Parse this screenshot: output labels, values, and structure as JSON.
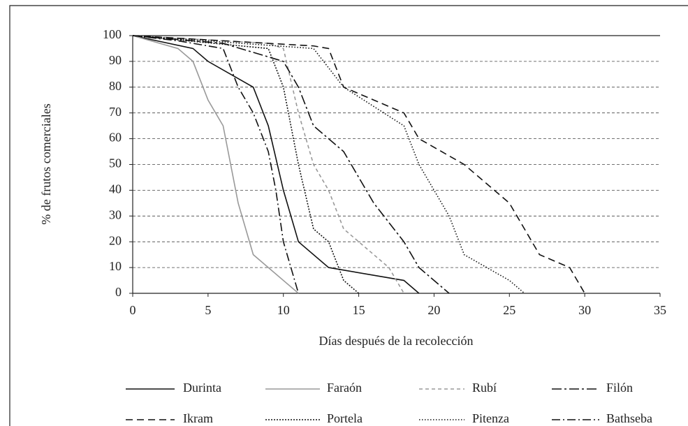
{
  "chart_data": {
    "type": "line",
    "x_label": "Días después de la recolección",
    "y_label": "% de frutos comerciales",
    "xlim": [
      0,
      35
    ],
    "xticks": [
      0,
      5,
      10,
      15,
      20,
      25,
      30,
      35
    ],
    "ylim": [
      0,
      100
    ],
    "yticks": [
      0,
      10,
      20,
      30,
      40,
      50,
      60,
      70,
      80,
      90,
      100
    ],
    "grid": true,
    "series": [
      {
        "name": "Durinta",
        "color": "#111111",
        "dash": "none",
        "x": [
          0,
          4,
          5,
          8,
          9,
          10,
          11,
          13,
          18,
          19
        ],
        "values": [
          100,
          95,
          90,
          80,
          65,
          40,
          20,
          10,
          5,
          0
        ]
      },
      {
        "name": "Faraón",
        "color": "#999999",
        "dash": "none",
        "x": [
          0,
          3,
          4,
          5,
          6,
          7,
          8,
          10,
          11
        ],
        "values": [
          100,
          95,
          90,
          75,
          65,
          35,
          15,
          5,
          0
        ]
      },
      {
        "name": "Rubí",
        "color": "#999999",
        "dash": "5 4",
        "x": [
          0,
          9,
          10,
          11,
          12,
          13,
          14,
          16,
          17,
          18
        ],
        "values": [
          100,
          97,
          95,
          70,
          50,
          40,
          25,
          15,
          10,
          0
        ]
      },
      {
        "name": "Filón",
        "color": "#111111",
        "dash": "14 4 3 4",
        "x": [
          0,
          6,
          10,
          11,
          12,
          14,
          16,
          18,
          19,
          21
        ],
        "values": [
          100,
          97,
          90,
          80,
          65,
          55,
          35,
          20,
          10,
          0
        ]
      },
      {
        "name": "Ikram",
        "color": "#111111",
        "dash": "10 6",
        "x": [
          0,
          12,
          13,
          14,
          16,
          18,
          19,
          22,
          25,
          26,
          27,
          29,
          30
        ],
        "values": [
          100,
          96,
          95,
          80,
          75,
          70,
          60,
          50,
          35,
          25,
          15,
          10,
          0
        ]
      },
      {
        "name": "Portela",
        "color": "#111111",
        "dash": "2 2",
        "x": [
          0,
          9,
          10,
          11,
          12,
          13,
          14,
          15
        ],
        "values": [
          100,
          95,
          80,
          50,
          25,
          20,
          5,
          0
        ]
      },
      {
        "name": "Pitenza",
        "color": "#111111",
        "dash": "1.5 2.5",
        "x": [
          0,
          12,
          14,
          18,
          19,
          21,
          22,
          25,
          26
        ],
        "values": [
          100,
          95,
          80,
          65,
          50,
          30,
          15,
          5,
          0
        ]
      },
      {
        "name": "Bathseba",
        "color": "#111111",
        "dash": "12 4 2 4",
        "x": [
          0,
          3,
          6,
          7,
          8,
          9,
          9.5,
          10,
          11
        ],
        "values": [
          100,
          98,
          95,
          80,
          70,
          55,
          40,
          20,
          0
        ]
      }
    ]
  }
}
